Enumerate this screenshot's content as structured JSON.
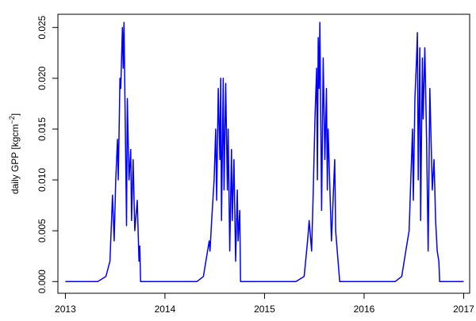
{
  "chart_data": {
    "type": "line",
    "title": "",
    "xlabel": "",
    "ylabel": "daily GPP [kgcm",
    "ylabel_exponent": "−2",
    "ylabel_close": "]",
    "xlim": [
      2012.925,
      2017.06
    ],
    "ylim": [
      -0.00115,
      0.0263
    ],
    "x_ticks": [
      2013,
      2014,
      2015,
      2016,
      2017
    ],
    "x_tick_labels": [
      "2013",
      "2014",
      "2015",
      "2016",
      "2017"
    ],
    "y_ticks": [
      0,
      0.005,
      0.01,
      0.015,
      0.02,
      0.025
    ],
    "y_tick_labels": [
      "0.000",
      "0.005",
      "0.010",
      "0.015",
      "0.020",
      "0.025"
    ],
    "grid": false,
    "line_color": "#0000ff",
    "series": [
      {
        "x": [
          2013.0,
          2013.324,
          2013.407,
          2013.448,
          2013.473,
          2013.49,
          2013.506,
          2013.523,
          2013.531,
          2013.548,
          2013.556,
          2013.573,
          2013.581,
          2013.589,
          2013.614,
          2013.622,
          2013.639,
          2013.656,
          2013.664,
          2013.68,
          2013.697,
          2013.722,
          2013.739,
          2013.747,
          2013.755,
          2014.32,
          2014.386,
          2014.444,
          2014.452,
          2014.469,
          2014.494,
          2014.51,
          2014.519,
          2014.535,
          2014.552,
          2014.56,
          2014.568,
          2014.585,
          2014.593,
          2014.61,
          2014.627,
          2014.635,
          2014.651,
          2014.668,
          2014.676,
          2014.693,
          2014.71,
          2014.726,
          2014.734,
          2014.751,
          2014.759,
          2015.315,
          2015.398,
          2015.432,
          2015.448,
          2015.473,
          2015.49,
          2015.506,
          2015.523,
          2015.531,
          2015.539,
          2015.548,
          2015.556,
          2015.573,
          2015.589,
          2015.606,
          2015.622,
          2015.631,
          2015.639,
          2015.672,
          2015.705,
          2015.714,
          2015.73,
          2015.747,
          2015.755,
          2016.311,
          2016.378,
          2016.419,
          2016.452,
          2016.469,
          2016.486,
          2016.494,
          2016.51,
          2016.527,
          2016.535,
          2016.544,
          2016.56,
          2016.568,
          2016.585,
          2016.593,
          2016.61,
          2016.627,
          2016.643,
          2016.66,
          2016.685,
          2016.702,
          2016.718,
          2016.734,
          2016.751,
          2016.759,
          2017.0
        ],
        "y": [
          0,
          0,
          0.0005,
          0.002,
          0.0085,
          0.004,
          0.01,
          0.014,
          0.01,
          0.02,
          0.019,
          0.025,
          0.021,
          0.0255,
          0.0055,
          0.018,
          0.01,
          0.013,
          0.006,
          0.012,
          0.005,
          0.008,
          0.002,
          0.0035,
          0,
          0,
          0.0005,
          0.004,
          0.003,
          0.006,
          0.01,
          0.015,
          0.008,
          0.019,
          0.012,
          0.02,
          0.006,
          0.02,
          0.009,
          0.0195,
          0.009,
          0.015,
          0.003,
          0.013,
          0.006,
          0.012,
          0.002,
          0.009,
          0.004,
          0.007,
          0,
          0,
          0.0005,
          0.004,
          0.006,
          0.003,
          0.009,
          0.016,
          0.021,
          0.01,
          0.024,
          0.019,
          0.0255,
          0.007,
          0.022,
          0.012,
          0.019,
          0.009,
          0.015,
          0.004,
          0.012,
          0.005,
          0.003,
          0.001,
          0,
          0,
          0.0005,
          0.003,
          0.005,
          0.01,
          0.015,
          0.008,
          0.018,
          0.022,
          0.0245,
          0.01,
          0.023,
          0.006,
          0.022,
          0.016,
          0.023,
          0.014,
          0.003,
          0.019,
          0.009,
          0.012,
          0.006,
          0.003,
          0.002,
          0,
          0
        ]
      }
    ]
  }
}
